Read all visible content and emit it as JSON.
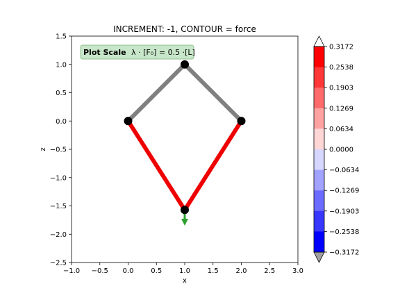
{
  "chart_data": {
    "type": "network",
    "title": "INCREMENT: -1, CONTOUR = force",
    "xlabel": "x",
    "ylabel": "z",
    "xlim": [
      -1.0,
      3.0
    ],
    "ylim": [
      -2.5,
      1.5
    ],
    "xticks": [
      -1.0,
      -0.5,
      0.0,
      0.5,
      1.0,
      1.5,
      2.0,
      2.5,
      3.0
    ],
    "yticks": [
      -2.5,
      -2.0,
      -1.5,
      -1.0,
      -0.5,
      0.0,
      0.5,
      1.0,
      1.5
    ],
    "xtick_labels": [
      "−1.0",
      "−0.5",
      "0.0",
      "0.5",
      "1.0",
      "1.5",
      "2.0",
      "2.5",
      "3.0"
    ],
    "ytick_labels": [
      "−2.5",
      "−2.0",
      "−1.5",
      "−1.0",
      "−0.5",
      "0.0",
      "0.5",
      "1.0",
      "1.5"
    ],
    "grid": false,
    "nodes": [
      {
        "x": 0.0,
        "z": 0.0
      },
      {
        "x": 1.0,
        "z": 1.0
      },
      {
        "x": 2.0,
        "z": 0.0
      },
      {
        "x": 1.0,
        "z": -1.57
      }
    ],
    "members": [
      {
        "from": 0,
        "to": 1,
        "color": "#808080"
      },
      {
        "from": 1,
        "to": 2,
        "color": "#808080"
      },
      {
        "from": 0,
        "to": 3,
        "color": "#ee0000"
      },
      {
        "from": 2,
        "to": 3,
        "color": "#ee0000"
      }
    ],
    "load_arrow": {
      "x": 1.0,
      "z_start": -1.57,
      "z_end": -1.85,
      "color": "#2ca02c"
    },
    "annotation": {
      "bold": "Plot Scale",
      "formula": "λ · [F₀] =  0.5 ·[L]",
      "background": "#c8e6c9",
      "border": "#8fbf8f"
    },
    "colorbar": {
      "ticks": [
        "0.3172",
        "0.2538",
        "0.1903",
        "0.1269",
        "0.0634",
        "0.0000",
        "−0.0634",
        "−0.1269",
        "−0.1903",
        "−0.2538",
        "−0.3172"
      ],
      "colors": [
        "#ff0000",
        "#ff3737",
        "#ff6b6b",
        "#ffa2a2",
        "#ffd6d6",
        "#d6d6ff",
        "#a2a2ff",
        "#6b6bff",
        "#3737ff",
        "#0000ff"
      ],
      "over_color": "#ffffff",
      "under_color": "#a0a0a0"
    }
  }
}
